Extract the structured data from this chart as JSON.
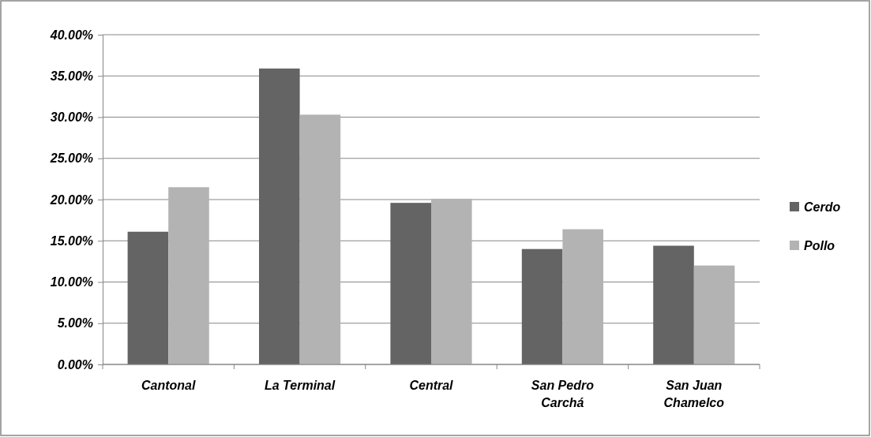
{
  "chart_data": {
    "type": "bar",
    "categories": [
      "Cantonal",
      "La Terminal",
      "Central",
      "San Pedro Carchá",
      "San Juan Chamelco"
    ],
    "series": [
      {
        "name": "Cerdo",
        "color": "#646464",
        "values": [
          16.1,
          35.9,
          19.6,
          14.0,
          14.4
        ]
      },
      {
        "name": "Pollo",
        "color": "#b3b3b3",
        "values": [
          21.5,
          30.3,
          20.1,
          16.4,
          12.0
        ]
      }
    ],
    "ylim": [
      0,
      40
    ],
    "yticks": [
      {
        "value": 0,
        "label": "0.00%"
      },
      {
        "value": 5,
        "label": "5.00%"
      },
      {
        "value": 10,
        "label": "10.00%"
      },
      {
        "value": 15,
        "label": "15.00%"
      },
      {
        "value": 20,
        "label": "20.00%"
      },
      {
        "value": 25,
        "label": "25.00%"
      },
      {
        "value": 30,
        "label": "30.00%"
      },
      {
        "value": 35,
        "label": "35.00%"
      },
      {
        "value": 40,
        "label": "40.00%"
      }
    ],
    "grid": "y",
    "legend": "right"
  }
}
